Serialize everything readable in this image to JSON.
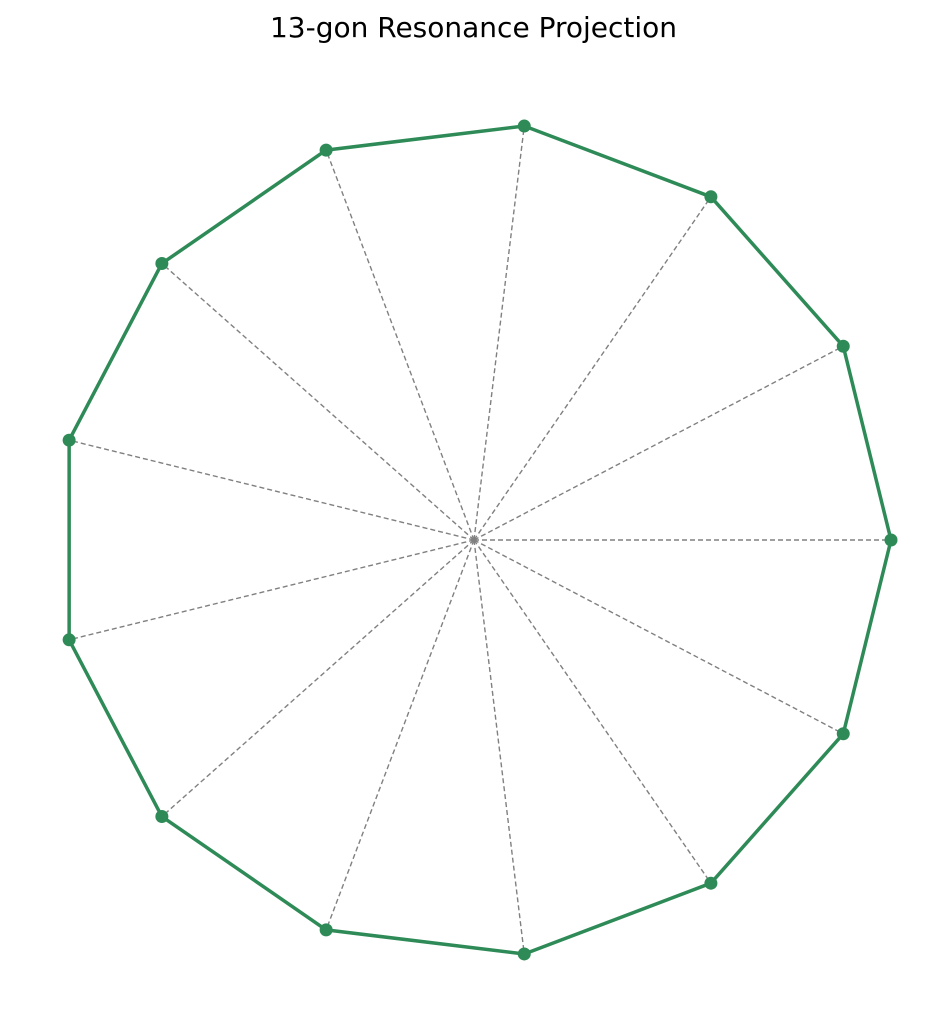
{
  "chart_data": {
    "type": "line",
    "title": "13-gon Resonance Projection",
    "n_sides": 13,
    "center": [
      0,
      0
    ],
    "radius": 1,
    "series": [
      {
        "values": [
          [
            1.0,
            0.0
          ],
          [
            0.8855,
            0.4647
          ],
          [
            0.5681,
            0.823
          ],
          [
            0.1205,
            0.9927
          ],
          [
            -0.3546,
            0.935
          ],
          [
            -0.7485,
            0.6631
          ],
          [
            -0.9709,
            0.2393
          ],
          [
            -0.9709,
            -0.2393
          ],
          [
            -0.7485,
            -0.6631
          ],
          [
            -0.3546,
            -0.935
          ],
          [
            0.1205,
            -0.9927
          ],
          [
            0.5681,
            -0.823
          ],
          [
            0.8855,
            -0.4647
          ]
        ]
      }
    ],
    "spokes": true,
    "axes_visible": false,
    "grid": false,
    "colors": {
      "polygon": "#2e8b57",
      "spokes": "#808080"
    }
  }
}
